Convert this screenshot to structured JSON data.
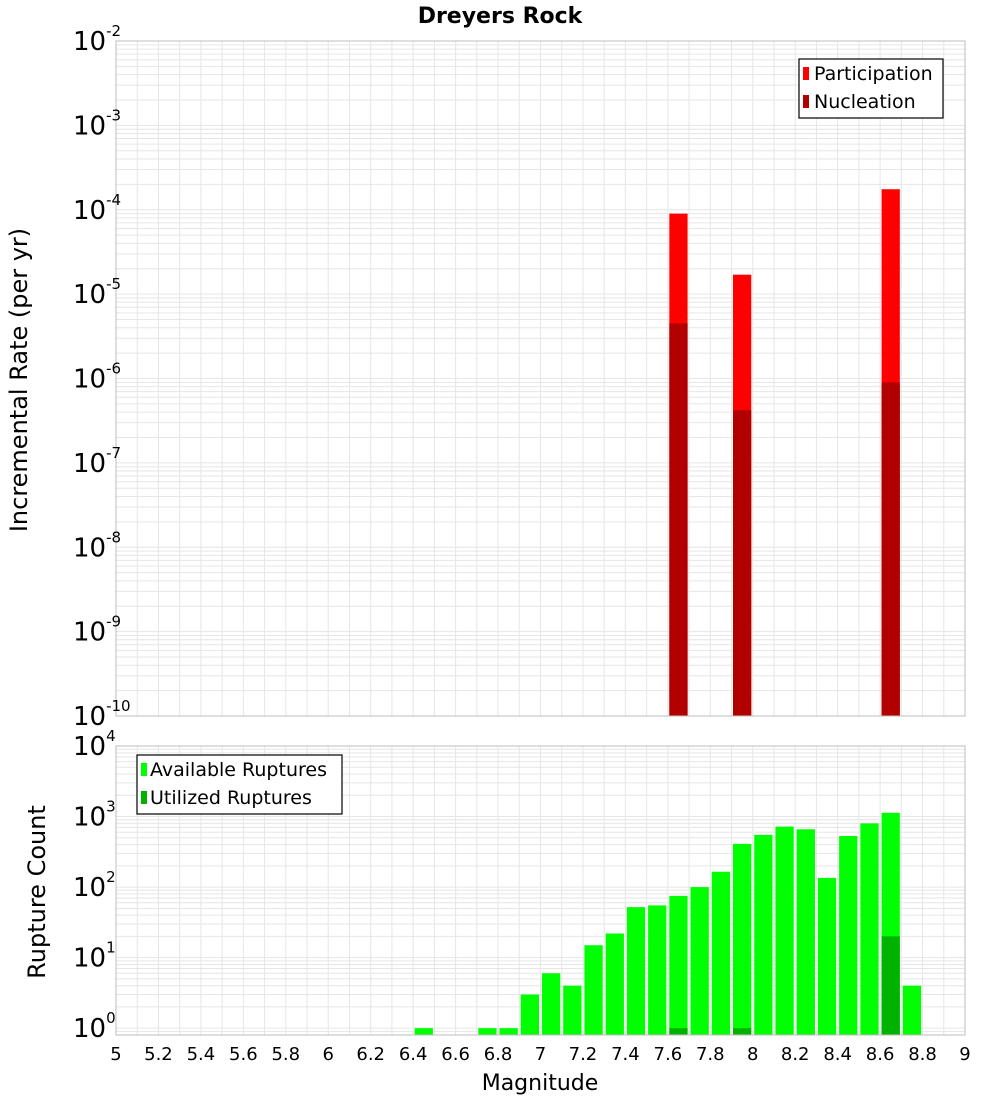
{
  "chart_data": [
    {
      "type": "bar",
      "title": "Dreyers Rock",
      "xlabel": "",
      "ylabel": "Incremental Rate (per yr)",
      "yscale": "log",
      "ylim": [
        1e-10,
        0.01
      ],
      "xlim": [
        5,
        9
      ],
      "bin_width": 0.1,
      "grid": true,
      "legend_placement": "top-right",
      "y_ticks": [
        {
          "base": "10",
          "exp": "-10"
        },
        {
          "base": "10",
          "exp": "-9"
        },
        {
          "base": "10",
          "exp": "-8"
        },
        {
          "base": "10",
          "exp": "-7"
        },
        {
          "base": "10",
          "exp": "-6"
        },
        {
          "base": "10",
          "exp": "-5"
        },
        {
          "base": "10",
          "exp": "-4"
        },
        {
          "base": "10",
          "exp": "-3"
        },
        {
          "base": "10",
          "exp": "-2"
        }
      ],
      "series": [
        {
          "name": "Participation",
          "color": "#ff0000",
          "x": [
            7.65,
            7.95,
            8.65
          ],
          "values": [
            9e-05,
            1.7e-05,
            0.000175
          ]
        },
        {
          "name": "Nucleation",
          "color": "#b20000",
          "x": [
            7.65,
            7.95,
            8.65
          ],
          "values": [
            4.5e-06,
            4.2e-07,
            9e-07
          ]
        }
      ]
    },
    {
      "type": "bar",
      "title": "",
      "xlabel": "Magnitude",
      "ylabel": "Rupture Count",
      "yscale": "log",
      "ylim": [
        0.8,
        10000
      ],
      "xlim": [
        5,
        9
      ],
      "bin_width": 0.1,
      "grid": true,
      "legend_placement": "top-left",
      "x_ticks": [
        "5",
        "5.2",
        "5.4",
        "5.6",
        "5.8",
        "6",
        "6.2",
        "6.4",
        "6.6",
        "6.8",
        "7",
        "7.2",
        "7.4",
        "7.6",
        "7.8",
        "8",
        "8.2",
        "8.4",
        "8.6",
        "8.8",
        "9"
      ],
      "y_ticks": [
        {
          "base": "10",
          "exp": "0"
        },
        {
          "base": "10",
          "exp": "1"
        },
        {
          "base": "10",
          "exp": "2"
        },
        {
          "base": "10",
          "exp": "3"
        },
        {
          "base": "10",
          "exp": "4"
        }
      ],
      "series": [
        {
          "name": "Available Ruptures",
          "color": "#00ff00",
          "x": [
            6.45,
            6.75,
            6.85,
            6.95,
            7.05,
            7.15,
            7.25,
            7.35,
            7.45,
            7.55,
            7.65,
            7.75,
            7.85,
            7.95,
            8.05,
            8.15,
            8.25,
            8.35,
            8.45,
            8.55,
            8.65,
            8.75
          ],
          "values": [
            1,
            1,
            1,
            3,
            6,
            4,
            15,
            22,
            52,
            55,
            75,
            100,
            165,
            410,
            550,
            720,
            660,
            135,
            530,
            800,
            1130,
            4
          ]
        },
        {
          "name": "Utilized Ruptures",
          "color": "#00b200",
          "x": [
            7.65,
            7.95,
            8.65
          ],
          "values": [
            1,
            1,
            20
          ]
        }
      ]
    }
  ]
}
